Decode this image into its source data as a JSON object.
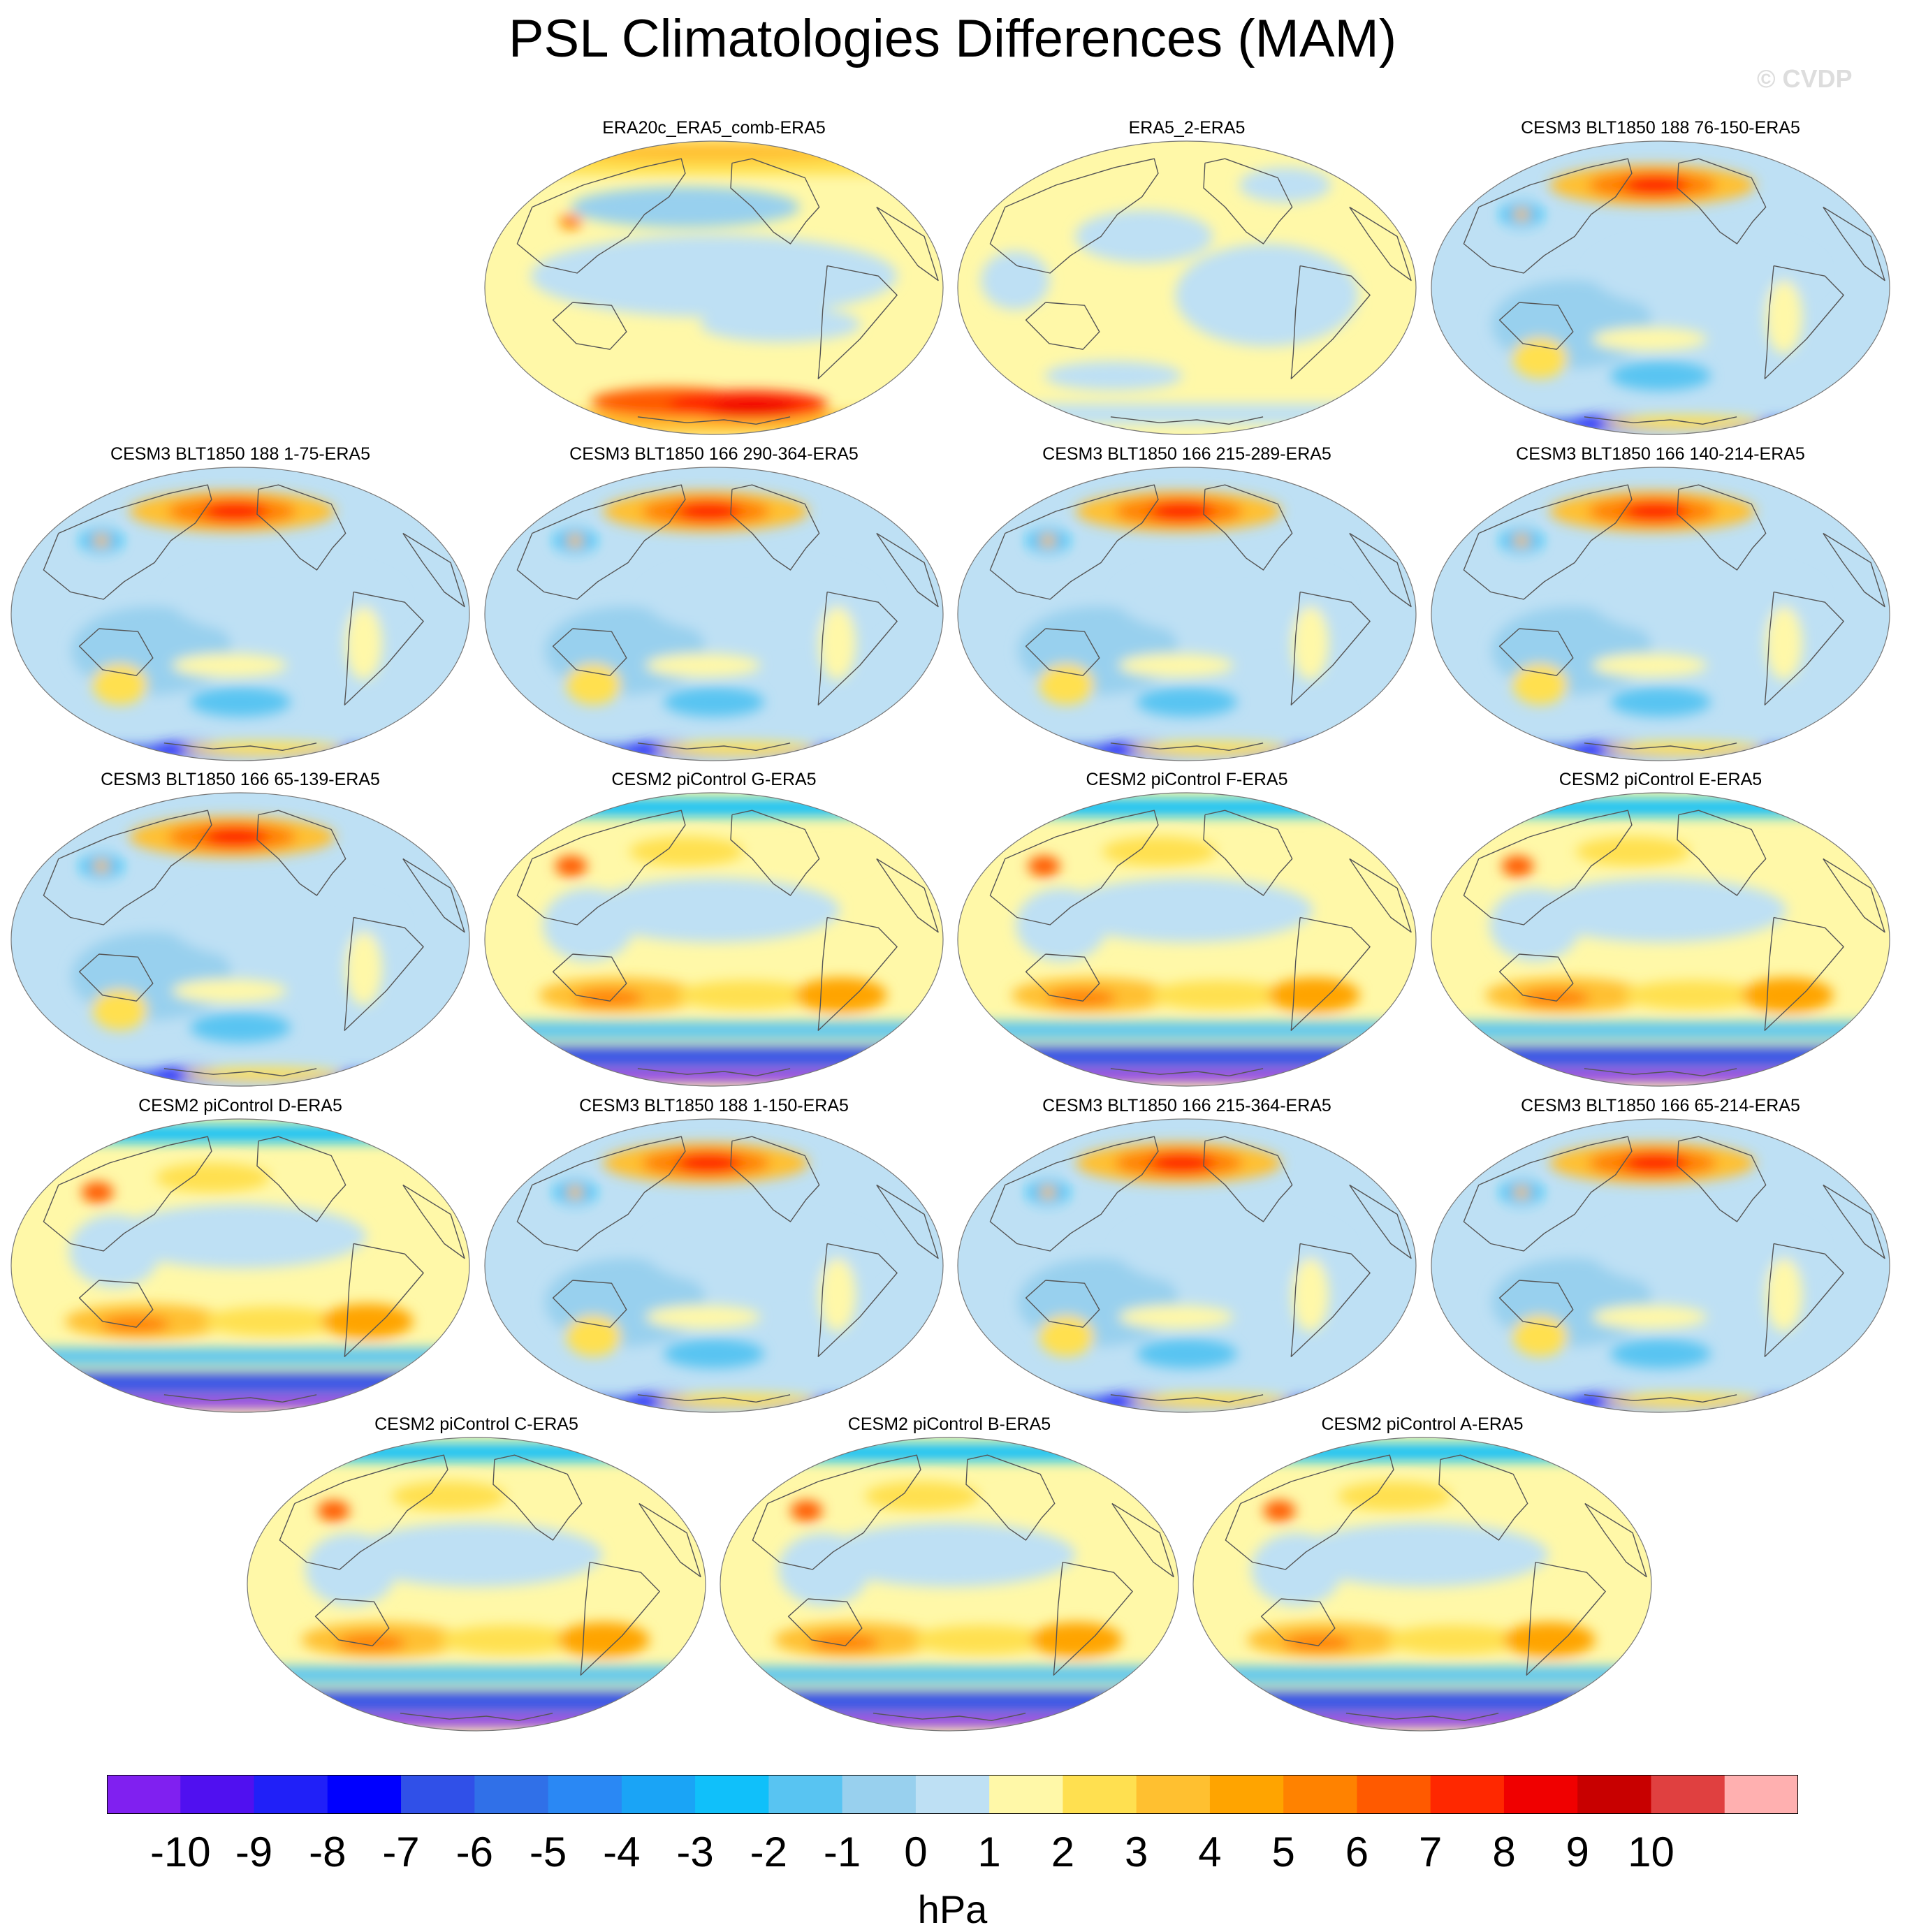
{
  "title": "PSL Climatologies Differences (MAM)",
  "watermark": "© CVDP",
  "chart_data": {
    "type": "heatmap",
    "title": "PSL Climatologies Differences (MAM)",
    "projection": "global ellipse map, Pacific-centered",
    "units": "hPa",
    "colorbar": {
      "ticks": [
        -10,
        -9,
        -8,
        -7,
        -6,
        -5,
        -4,
        -3,
        -2,
        -1,
        0,
        1,
        2,
        3,
        4,
        5,
        6,
        7,
        8,
        9,
        10
      ],
      "colors": [
        "#8020f0",
        "#5010f0",
        "#2020f8",
        "#0000ff",
        "#3050e8",
        "#3070e8",
        "#2a88f4",
        "#1aa4f6",
        "#10c0fa",
        "#58c4f2",
        "#98d0ee",
        "#bee0f4",
        "#fff8a8",
        "#ffe050",
        "#ffc030",
        "#ffa400",
        "#ff8200",
        "#ff5a00",
        "#ff2800",
        "#f00000",
        "#c80000",
        "#e04040",
        "#ffb0b0"
      ]
    },
    "panels": [
      {
        "title": "ERA20c_ERA5_comb-ERA5",
        "pattern": "era20c"
      },
      {
        "title": "ERA5_2-ERA5",
        "pattern": "era5"
      },
      {
        "title": "CESM3 BLT1850 188 76-150-ERA5",
        "pattern": "cesm3"
      },
      {
        "title": "CESM3 BLT1850 188 1-75-ERA5",
        "pattern": "cesm3"
      },
      {
        "title": "CESM3 BLT1850 166 290-364-ERA5",
        "pattern": "cesm3"
      },
      {
        "title": "CESM3 BLT1850 166 215-289-ERA5",
        "pattern": "cesm3"
      },
      {
        "title": "CESM3 BLT1850 166 140-214-ERA5",
        "pattern": "cesm3"
      },
      {
        "title": "CESM3 BLT1850 166 65-139-ERA5",
        "pattern": "cesm3"
      },
      {
        "title": "CESM2 piControl G-ERA5",
        "pattern": "cesm2"
      },
      {
        "title": "CESM2 piControl F-ERA5",
        "pattern": "cesm2"
      },
      {
        "title": "CESM2 piControl E-ERA5",
        "pattern": "cesm2"
      },
      {
        "title": "CESM2 piControl D-ERA5",
        "pattern": "cesm2"
      },
      {
        "title": "CESM3 BLT1850 188 1-150-ERA5",
        "pattern": "cesm3"
      },
      {
        "title": "CESM3 BLT1850 166 215-364-ERA5",
        "pattern": "cesm3"
      },
      {
        "title": "CESM3 BLT1850 166 65-214-ERA5",
        "pattern": "cesm3"
      },
      {
        "title": "CESM2 piControl C-ERA5",
        "pattern": "cesm2"
      },
      {
        "title": "CESM2 piControl B-ERA5",
        "pattern": "cesm2"
      },
      {
        "title": "CESM2 piControl A-ERA5",
        "pattern": "cesm2"
      }
    ]
  }
}
